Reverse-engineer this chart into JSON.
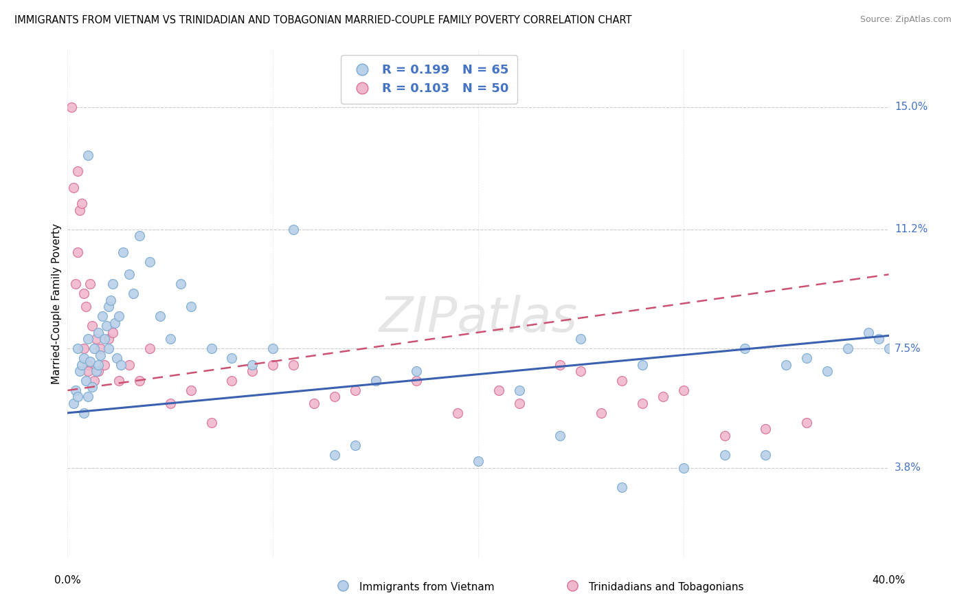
{
  "title": "IMMIGRANTS FROM VIETNAM VS TRINIDADIAN AND TOBAGONIAN MARRIED-COUPLE FAMILY POVERTY CORRELATION CHART",
  "source": "Source: ZipAtlas.com",
  "ylabel": "Married-Couple Family Poverty",
  "ytick_values": [
    3.8,
    7.5,
    11.2,
    15.0
  ],
  "ytick_labels": [
    "3.8%",
    "7.5%",
    "11.2%",
    "15.0%"
  ],
  "xmin": 0.0,
  "xmax": 40.0,
  "ymin": 1.0,
  "ymax": 16.8,
  "legend1_R": "R = 0.199",
  "legend1_N": "N = 65",
  "legend2_R": "R = 0.103",
  "legend2_N": "N = 50",
  "color_blue": "#b8d0e8",
  "color_blue_border": "#7aaad0",
  "color_pink": "#f0b8cc",
  "color_pink_border": "#d87098",
  "color_line_blue": "#3a60b0",
  "color_line_pink": "#cc5070",
  "watermark": "ZIPatlas",
  "blue_line_x0": 0.0,
  "blue_line_y0": 5.5,
  "blue_line_x1": 40.0,
  "blue_line_y1": 7.9,
  "pink_line_x0": 0.0,
  "pink_line_y0": 6.2,
  "pink_line_x1": 40.0,
  "pink_line_y1": 9.8,
  "scatter_blue_x": [
    0.3,
    0.4,
    0.5,
    0.5,
    0.6,
    0.7,
    0.8,
    0.8,
    0.9,
    1.0,
    1.0,
    1.1,
    1.2,
    1.3,
    1.4,
    1.5,
    1.5,
    1.6,
    1.7,
    1.8,
    1.9,
    2.0,
    2.0,
    2.1,
    2.2,
    2.3,
    2.4,
    2.5,
    2.6,
    2.7,
    3.0,
    3.2,
    3.5,
    4.0,
    4.5,
    5.0,
    5.5,
    6.0,
    7.0,
    8.0,
    9.0,
    10.0,
    11.0,
    13.0,
    14.0,
    15.0,
    17.0,
    20.0,
    22.0,
    24.0,
    25.0,
    27.0,
    28.0,
    30.0,
    32.0,
    33.0,
    34.0,
    35.0,
    36.0,
    37.0,
    38.0,
    39.0,
    39.5,
    40.0,
    1.0
  ],
  "scatter_blue_y": [
    5.8,
    6.2,
    6.0,
    7.5,
    6.8,
    7.0,
    5.5,
    7.2,
    6.5,
    6.0,
    7.8,
    7.1,
    6.3,
    7.5,
    6.8,
    7.0,
    8.0,
    7.3,
    8.5,
    7.8,
    8.2,
    7.5,
    8.8,
    9.0,
    9.5,
    8.3,
    7.2,
    8.5,
    7.0,
    10.5,
    9.8,
    9.2,
    11.0,
    10.2,
    8.5,
    7.8,
    9.5,
    8.8,
    7.5,
    7.2,
    7.0,
    7.5,
    11.2,
    4.2,
    4.5,
    6.5,
    6.8,
    4.0,
    6.2,
    4.8,
    7.8,
    3.2,
    7.0,
    3.8,
    4.2,
    7.5,
    4.2,
    7.0,
    7.2,
    6.8,
    7.5,
    8.0,
    7.8,
    7.5,
    13.5
  ],
  "scatter_pink_x": [
    0.2,
    0.3,
    0.4,
    0.5,
    0.5,
    0.6,
    0.7,
    0.8,
    0.8,
    0.9,
    1.0,
    1.0,
    1.1,
    1.2,
    1.3,
    1.4,
    1.5,
    1.6,
    1.8,
    2.0,
    2.2,
    2.5,
    3.0,
    3.5,
    4.0,
    5.0,
    6.0,
    7.0,
    8.0,
    9.0,
    10.0,
    11.0,
    12.0,
    13.0,
    14.0,
    15.0,
    17.0,
    19.0,
    21.0,
    22.0,
    24.0,
    25.0,
    26.0,
    27.0,
    28.0,
    29.0,
    30.0,
    32.0,
    34.0,
    36.0
  ],
  "scatter_pink_y": [
    15.0,
    12.5,
    9.5,
    13.0,
    10.5,
    11.8,
    12.0,
    9.2,
    7.5,
    8.8,
    7.0,
    6.8,
    9.5,
    8.2,
    6.5,
    7.8,
    6.8,
    7.5,
    7.0,
    7.8,
    8.0,
    6.5,
    7.0,
    6.5,
    7.5,
    5.8,
    6.2,
    5.2,
    6.5,
    6.8,
    7.0,
    7.0,
    5.8,
    6.0,
    6.2,
    6.5,
    6.5,
    5.5,
    6.2,
    5.8,
    7.0,
    6.8,
    5.5,
    6.5,
    5.8,
    6.0,
    6.2,
    4.8,
    5.0,
    5.2
  ]
}
